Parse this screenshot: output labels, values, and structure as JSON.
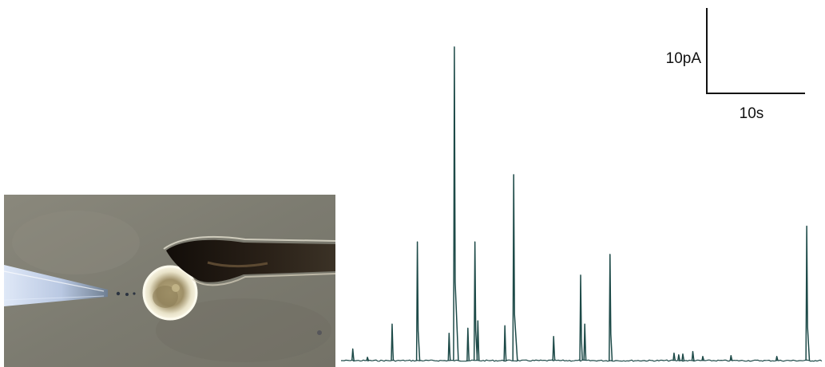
{
  "scale_bar": {
    "current_label": "10pA",
    "time_label": "10s"
  },
  "colors": {
    "trace": "#1d4a48",
    "scale_bar": "#111111",
    "micrograph_background": "#7f7f72",
    "pipette_dark": "#211a14"
  },
  "chart_data": {
    "type": "line",
    "x_unit": "s",
    "y_unit": "pA",
    "baseline_pA": 0,
    "time_range_s": [
      0,
      82
    ],
    "events": [
      {
        "t": 2.0,
        "amplitude_pA": 1.4
      },
      {
        "t": 4.5,
        "amplitude_pA": 0.4
      },
      {
        "t": 8.7,
        "amplitude_pA": 4.4
      },
      {
        "t": 13.0,
        "amplitude_pA": 14.3
      },
      {
        "t": 18.4,
        "amplitude_pA": 3.3
      },
      {
        "t": 19.3,
        "amplitude_pA": 37.8
      },
      {
        "t": 21.6,
        "amplitude_pA": 3.9
      },
      {
        "t": 22.8,
        "amplitude_pA": 14.3
      },
      {
        "t": 23.3,
        "amplitude_pA": 4.8
      },
      {
        "t": 27.9,
        "amplitude_pA": 4.2
      },
      {
        "t": 29.4,
        "amplitude_pA": 22.4
      },
      {
        "t": 36.2,
        "amplitude_pA": 2.9
      },
      {
        "t": 40.8,
        "amplitude_pA": 10.3
      },
      {
        "t": 41.5,
        "amplitude_pA": 4.4
      },
      {
        "t": 45.8,
        "amplitude_pA": 12.8
      },
      {
        "t": 56.7,
        "amplitude_pA": 0.9
      },
      {
        "t": 57.5,
        "amplitude_pA": 0.7
      },
      {
        "t": 58.2,
        "amplitude_pA": 0.8
      },
      {
        "t": 59.9,
        "amplitude_pA": 1.1
      },
      {
        "t": 61.6,
        "amplitude_pA": 0.5
      },
      {
        "t": 66.4,
        "amplitude_pA": 0.6
      },
      {
        "t": 74.2,
        "amplitude_pA": 0.5
      },
      {
        "t": 79.3,
        "amplitude_pA": 16.2
      }
    ]
  }
}
